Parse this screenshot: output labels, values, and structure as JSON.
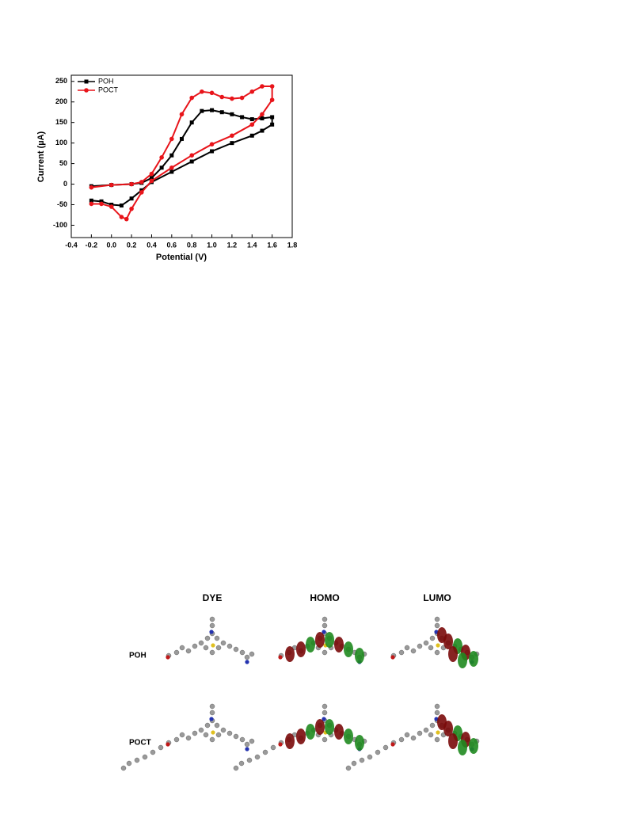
{
  "chart_data": {
    "type": "line",
    "x_label": "Potential (V)",
    "y_label": "Current (µA)",
    "xlim": [
      -0.4,
      1.8
    ],
    "xticks": [
      -0.4,
      -0.2,
      {
        "value": 0,
        "label": "0.0"
      },
      0.2,
      0.4,
      0.6,
      0.8,
      {
        "value": 1,
        "label": "1.0"
      },
      1.2,
      1.4,
      1.6,
      1.8
    ],
    "ylim": [
      -130,
      265
    ],
    "yticks": [
      -100,
      -50,
      0,
      50,
      100,
      150,
      200,
      250
    ],
    "legend": "upper-left",
    "series": [
      {
        "name": "POH",
        "color": "#000000",
        "marker": "square",
        "x": [
          -0.2,
          0,
          0.2,
          0.3,
          0.4,
          0.5,
          0.6,
          0.7,
          0.8,
          0.9,
          1,
          1.1,
          1.2,
          1.3,
          1.4,
          1.5,
          1.6,
          1.6,
          1.5,
          1.4,
          1.2,
          1,
          0.8,
          0.6,
          0.4,
          0.3,
          0.2,
          0.1,
          0,
          -0.1,
          -0.2
        ],
        "values": [
          -5,
          -2,
          0,
          3,
          15,
          40,
          70,
          110,
          150,
          178,
          180,
          175,
          170,
          163,
          158,
          160,
          163,
          145,
          130,
          118,
          100,
          80,
          55,
          30,
          5,
          -15,
          -35,
          -52,
          -50,
          -42,
          -40
        ]
      },
      {
        "name": "POCT",
        "color": "#e8141a",
        "marker": "circle",
        "x": [
          -0.2,
          0,
          0.2,
          0.3,
          0.4,
          0.5,
          0.6,
          0.7,
          0.8,
          0.9,
          1,
          1.1,
          1.2,
          1.3,
          1.4,
          1.5,
          1.6,
          1.6,
          1.5,
          1.4,
          1.2,
          1,
          0.8,
          0.6,
          0.4,
          0.3,
          0.2,
          0.15,
          0.1,
          0,
          -0.1,
          -0.2
        ],
        "values": [
          -8,
          -2,
          0,
          5,
          25,
          65,
          110,
          170,
          210,
          225,
          222,
          212,
          208,
          210,
          225,
          238,
          238,
          205,
          170,
          145,
          118,
          97,
          70,
          40,
          8,
          -20,
          -60,
          -85,
          -80,
          -55,
          -48,
          -48
        ]
      }
    ]
  },
  "figure": {
    "columns": [
      "DYE",
      "HOMO",
      "LUMO"
    ],
    "rows": [
      "POH",
      "POCT"
    ]
  }
}
